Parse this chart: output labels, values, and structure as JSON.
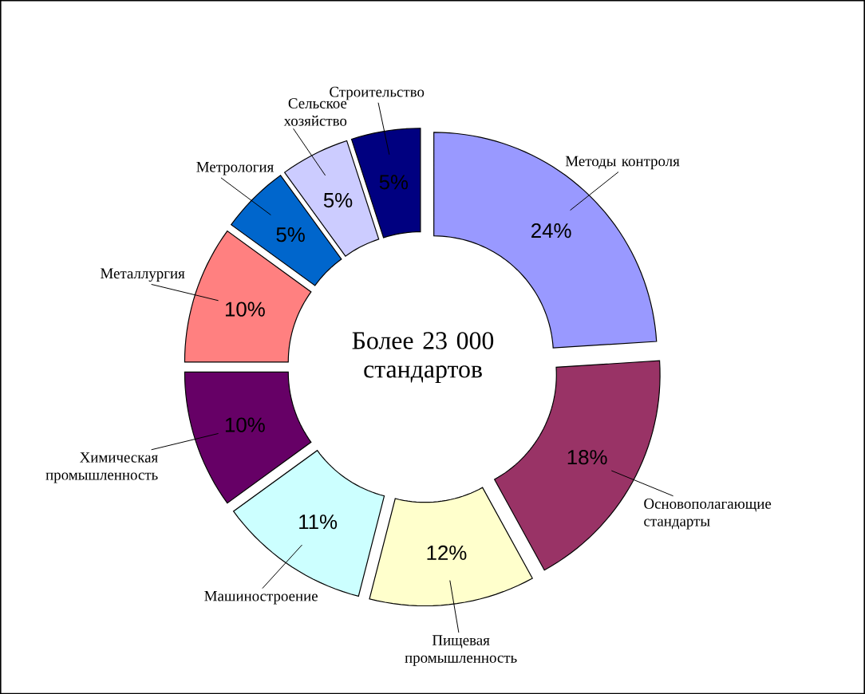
{
  "chart_data": {
    "type": "donut",
    "categories": [
      "Методы контроля",
      "Основополагающие стандарты",
      "Пищевая промышленность",
      "Машиностроение",
      "Химическая промышленность",
      "Металлургия",
      "Метрология",
      "Сельское хозяйство",
      "Строительство"
    ],
    "values": [
      24,
      18,
      12,
      11,
      10,
      10,
      5,
      5,
      5
    ],
    "colors": [
      "#9999ff",
      "#993366",
      "#ffffcc",
      "#ccffff",
      "#660066",
      "#ff8080",
      "#0066cc",
      "#ccccff",
      "#000080"
    ],
    "value_labels": [
      "24%",
      "18%",
      "12%",
      "11%",
      "10%",
      "10%",
      "5%",
      "5%",
      "5%"
    ],
    "annotations": [
      "Более 23 000 стандартов"
    ]
  }
}
